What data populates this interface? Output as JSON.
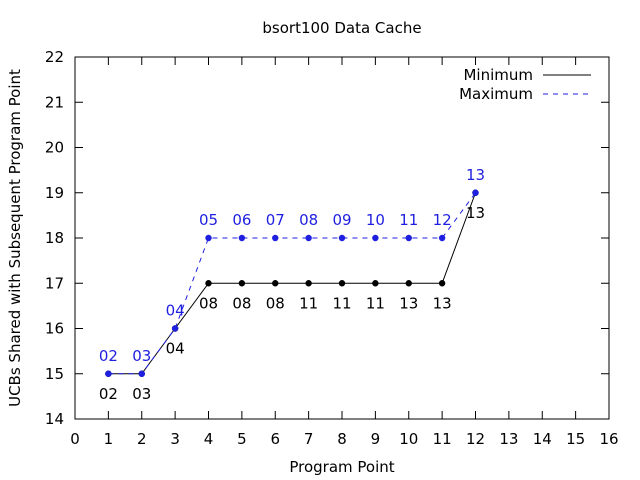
{
  "chart_data": {
    "type": "line",
    "title": "bsort100 Data Cache",
    "xlabel": "Program Point",
    "ylabel": "UCBs Shared with Subsequent Program Point",
    "xlim": [
      0,
      16
    ],
    "ylim": [
      14,
      22
    ],
    "xticks": [
      0,
      1,
      2,
      3,
      4,
      5,
      6,
      7,
      8,
      9,
      10,
      11,
      12,
      13,
      14,
      15,
      16
    ],
    "yticks": [
      14,
      15,
      16,
      17,
      18,
      19,
      20,
      21,
      22
    ],
    "grid": false,
    "legend_position": "top-right",
    "series": [
      {
        "name": "Minimum",
        "color": "#000000",
        "dash": "solid",
        "x": [
          1,
          2,
          3,
          4,
          5,
          6,
          7,
          8,
          9,
          10,
          11,
          12
        ],
        "y": [
          15,
          15,
          16,
          17,
          17,
          17,
          17,
          17,
          17,
          17,
          17,
          19
        ],
        "labels": [
          "02",
          "03",
          "04",
          "08",
          "08",
          "08",
          "11",
          "11",
          "11",
          "13",
          "13",
          "13"
        ],
        "label_position": "below"
      },
      {
        "name": "Maximum",
        "color": "#1f1fe0",
        "dash": "dashed",
        "x": [
          1,
          2,
          3,
          4,
          5,
          6,
          7,
          8,
          9,
          10,
          11,
          12
        ],
        "y": [
          15,
          15,
          16,
          18,
          18,
          18,
          18,
          18,
          18,
          18,
          18,
          19
        ],
        "labels": [
          "02",
          "03",
          "04",
          "05",
          "06",
          "07",
          "08",
          "09",
          "10",
          "11",
          "12",
          "13"
        ],
        "label_position": "above"
      }
    ]
  }
}
